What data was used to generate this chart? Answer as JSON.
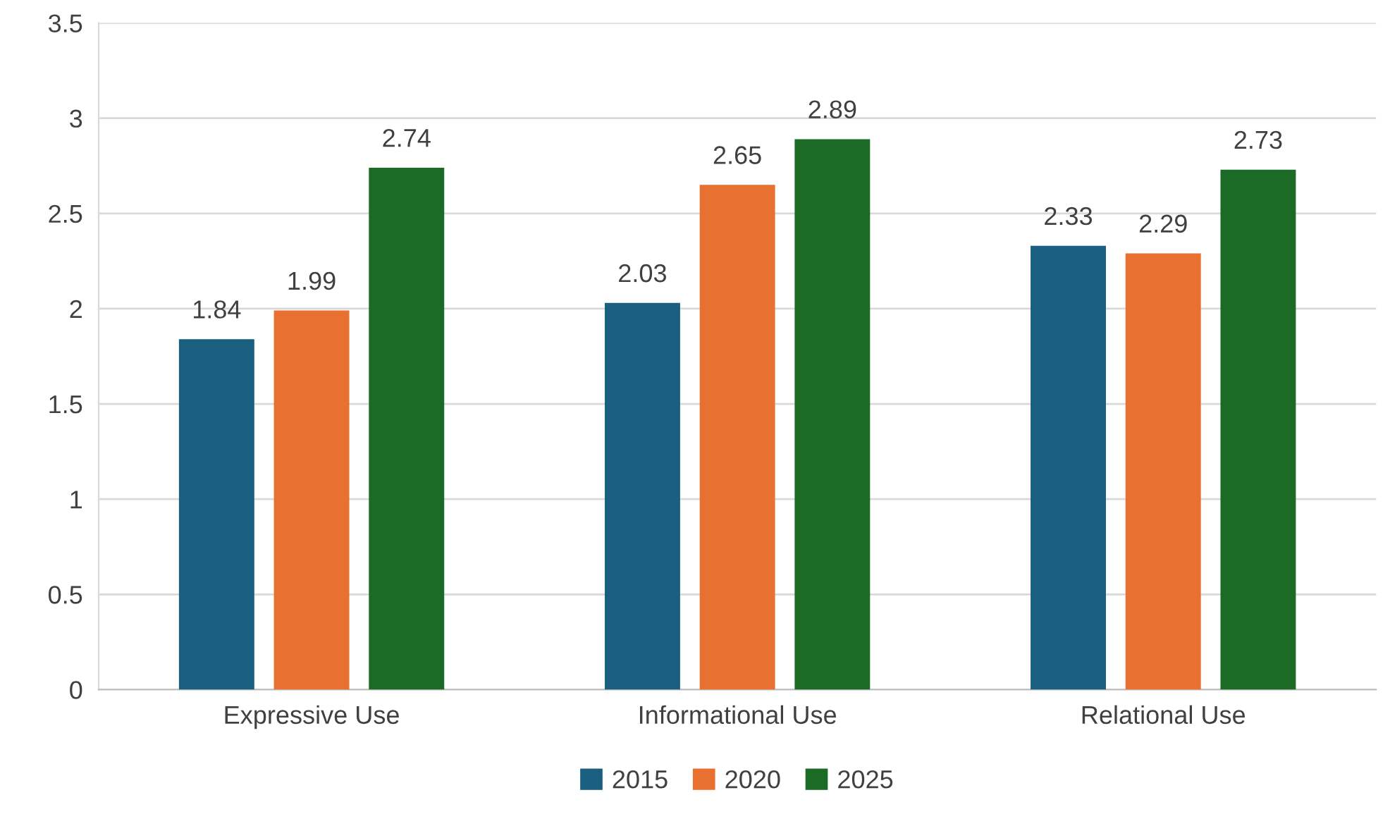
{
  "chart_data": {
    "type": "bar",
    "categories": [
      "Expressive Use",
      "Informational Use",
      "Relational Use"
    ],
    "series": [
      {
        "name": "2015",
        "color": "#1a5f80",
        "values": [
          1.84,
          2.03,
          2.33
        ]
      },
      {
        "name": "2020",
        "color": "#e87131",
        "values": [
          1.99,
          2.65,
          2.29
        ]
      },
      {
        "name": "2025",
        "color": "#1b6b27",
        "values": [
          2.74,
          2.89,
          2.73
        ]
      }
    ],
    "ylim": [
      0,
      3.5
    ],
    "yticks": [
      0,
      0.5,
      1,
      1.5,
      2,
      2.5,
      3,
      3.5
    ],
    "grid": "y",
    "legend": "bottom",
    "data_labels": true
  }
}
